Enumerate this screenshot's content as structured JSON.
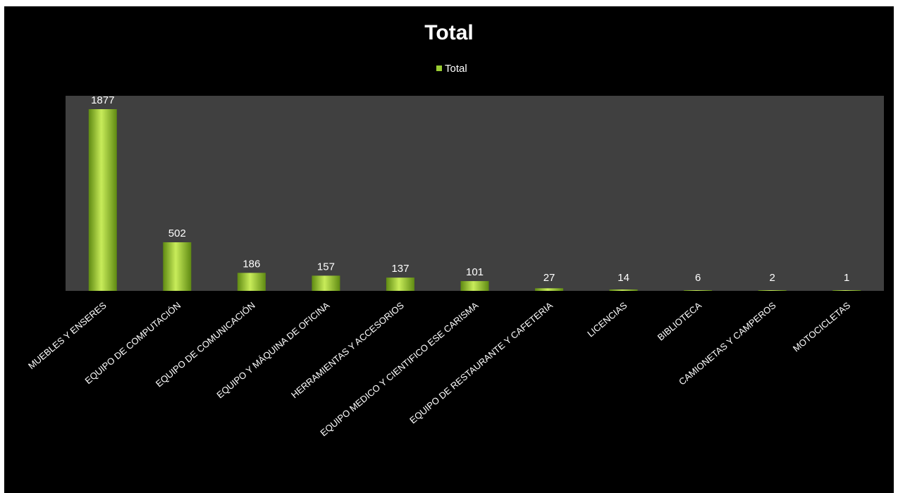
{
  "chart_data": {
    "type": "bar",
    "title": "Total",
    "legend": {
      "position": "top",
      "entries": [
        "Total"
      ]
    },
    "categories": [
      "MUEBLES Y ENSERES",
      "EQUIPO DE COMPUTACIÓN",
      "EQUIPO DE COMUNICACIÓN",
      "EQUIPO Y MÁQUINA DE OFICINA",
      "HERRAMIENTAS Y ACCESORIOS",
      "EQUIPO MEDICO Y CIENTIFICO ESE CARISMA",
      "EQUIPO DE RESTAURANTE Y CAFETERIA",
      "LICENCIAS",
      "BIBLIOTECA",
      "CAMIONETAS Y CAMPEROS",
      "MOTOCICLETAS"
    ],
    "series": [
      {
        "name": "Total",
        "values": [
          1877,
          502,
          186,
          157,
          137,
          101,
          27,
          14,
          6,
          2,
          1
        ],
        "color": "#9acd32"
      }
    ],
    "data_labels": true,
    "ylim": [
      0,
      1877
    ],
    "grid": false,
    "colors": {
      "background": "#000000",
      "plot_area": "#404040",
      "bar": "#9acd32",
      "bar_light": "#c8ec5a",
      "bar_dark": "#5f8a12",
      "text": "#ffffff"
    }
  }
}
